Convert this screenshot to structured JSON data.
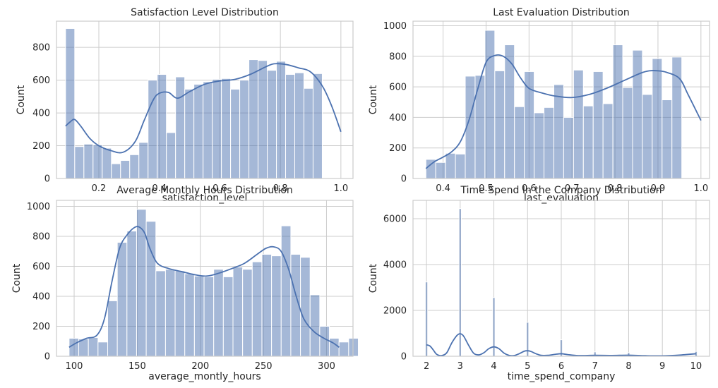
{
  "chart_data": [
    {
      "type": "bar",
      "title": "Satisfaction Level Distribution",
      "xlabel": "satisfaction_level",
      "ylabel": "Count",
      "xlim": [
        0.06,
        1.04
      ],
      "ylim": [
        0,
        960
      ],
      "xticks": [
        0.2,
        0.4,
        0.6,
        0.8,
        1.0
      ],
      "xticklabels": [
        "0.2",
        "0.4",
        "0.6",
        "0.8",
        "1.0"
      ],
      "yticks": [
        0,
        200,
        400,
        600,
        800
      ],
      "yticklabels": [
        "0",
        "200",
        "400",
        "600",
        "800"
      ],
      "bins": {
        "start": 0.09,
        "width": 0.0303
      },
      "values": [
        915,
        195,
        210,
        205,
        185,
        90,
        110,
        145,
        220,
        600,
        635,
        280,
        620,
        545,
        575,
        590,
        605,
        610,
        545,
        600,
        725,
        720,
        660,
        715,
        635,
        645,
        550,
        640
      ],
      "kde": {
        "x": [
          0.09,
          0.105,
          0.12,
          0.14,
          0.17,
          0.2,
          0.24,
          0.28,
          0.32,
          0.35,
          0.38,
          0.4,
          0.43,
          0.46,
          0.5,
          0.55,
          0.6,
          0.65,
          0.7,
          0.75,
          0.78,
          0.82,
          0.86,
          0.9,
          0.94,
          0.97,
          1.0
        ],
        "y": [
          320,
          345,
          360,
          320,
          245,
          200,
          170,
          160,
          225,
          355,
          480,
          520,
          525,
          490,
          530,
          575,
          595,
          605,
          635,
          680,
          700,
          695,
          675,
          650,
          560,
          440,
          285
        ]
      },
      "grid": true
    },
    {
      "type": "bar",
      "title": "Last Evaluation Distribution",
      "xlabel": "last_evaluation",
      "ylabel": "Count",
      "xlim": [
        0.33,
        1.02
      ],
      "ylim": [
        0,
        1030
      ],
      "xticks": [
        0.4,
        0.5,
        0.6,
        0.7,
        0.8,
        0.9,
        1.0
      ],
      "xticklabels": [
        "0.4",
        "0.5",
        "0.6",
        "0.7",
        "0.8",
        "0.9",
        "1.0"
      ],
      "yticks": [
        0,
        200,
        400,
        600,
        800,
        1000
      ],
      "yticklabels": [
        "0",
        "200",
        "400",
        "600",
        "800",
        "1000"
      ],
      "bins": {
        "start": 0.36,
        "width": 0.0229
      },
      "values": [
        125,
        105,
        165,
        160,
        670,
        675,
        970,
        705,
        875,
        470,
        700,
        430,
        465,
        615,
        400,
        710,
        475,
        700,
        490,
        875,
        595,
        840,
        550,
        785,
        515,
        795
      ],
      "kde": {
        "x": [
          0.36,
          0.38,
          0.4,
          0.42,
          0.44,
          0.46,
          0.48,
          0.5,
          0.52,
          0.54,
          0.56,
          0.58,
          0.6,
          0.63,
          0.66,
          0.7,
          0.74,
          0.78,
          0.82,
          0.86,
          0.88,
          0.9,
          0.92,
          0.95,
          0.97,
          1.0
        ],
        "y": [
          65,
          110,
          140,
          175,
          240,
          380,
          580,
          760,
          805,
          800,
          750,
          660,
          590,
          560,
          540,
          530,
          550,
          590,
          640,
          690,
          705,
          705,
          695,
          655,
          550,
          380
        ]
      },
      "grid": true
    },
    {
      "type": "bar",
      "title": "Average Monthly Hours Distribution",
      "xlabel": "average_montly_hours",
      "ylabel": "Count",
      "xlim": [
        86,
        321
      ],
      "ylim": [
        0,
        1040
      ],
      "xticks": [
        100,
        150,
        200,
        250,
        300
      ],
      "xticklabels": [
        "100",
        "150",
        "200",
        "250",
        "300"
      ],
      "yticks": [
        0,
        200,
        400,
        600,
        800,
        1000
      ],
      "yticklabels": [
        "0",
        "200",
        "400",
        "600",
        "800",
        "1000"
      ],
      "bins": {
        "start": 96,
        "width": 7.64
      },
      "values": [
        120,
        115,
        125,
        95,
        370,
        760,
        835,
        980,
        900,
        570,
        580,
        570,
        550,
        535,
        530,
        580,
        530,
        595,
        580,
        630,
        680,
        670,
        870,
        680,
        660,
        410,
        200,
        120,
        95,
        120
      ],
      "kde": {
        "x": [
          96,
          102,
          110,
          118,
          124,
          130,
          136,
          142,
          148,
          152,
          156,
          160,
          166,
          175,
          185,
          195,
          205,
          215,
          225,
          235,
          245,
          252,
          258,
          264,
          270,
          276,
          282,
          290,
          298,
          305,
          310
        ],
        "y": [
          60,
          90,
          120,
          140,
          250,
          500,
          720,
          810,
          860,
          860,
          820,
          720,
          620,
          585,
          565,
          545,
          535,
          555,
          585,
          620,
          680,
          720,
          730,
          700,
          580,
          400,
          250,
          165,
          120,
          90,
          60
        ]
      },
      "grid": true
    },
    {
      "type": "bar",
      "title": "Time Spend In the Company Distribution",
      "xlabel": "time_spend_company",
      "ylabel": "Count",
      "xlim": [
        1.6,
        10.4
      ],
      "ylim": [
        0,
        6800
      ],
      "xticks": [
        2,
        3,
        4,
        5,
        6,
        7,
        8,
        9,
        10
      ],
      "xticklabels": [
        "2",
        "3",
        "4",
        "5",
        "6",
        "7",
        "8",
        "9",
        "10"
      ],
      "yticks": [
        0,
        2000,
        4000,
        6000
      ],
      "yticklabels": [
        "0",
        "2000",
        "4000",
        "6000"
      ],
      "bar_positions": [
        2,
        3,
        4,
        5,
        6,
        7,
        8,
        10
      ],
      "bar_width": 0.07,
      "values": [
        3240,
        6440,
        2560,
        1480,
        720,
        190,
        160,
        210
      ],
      "kde": {
        "x": [
          2.0,
          2.1,
          2.2,
          2.3,
          2.45,
          2.6,
          2.75,
          2.9,
          3.0,
          3.1,
          3.25,
          3.4,
          3.55,
          3.7,
          3.85,
          4.0,
          4.15,
          4.3,
          4.45,
          4.6,
          4.75,
          4.9,
          5.0,
          5.1,
          5.25,
          5.4,
          5.6,
          5.8,
          6.0,
          6.2,
          6.5,
          7.0,
          7.5,
          8.0,
          8.5,
          9.0,
          9.5,
          10.0
        ],
        "y": [
          500,
          450,
          280,
          90,
          30,
          150,
          580,
          900,
          980,
          880,
          480,
          130,
          60,
          150,
          330,
          410,
          330,
          140,
          40,
          30,
          110,
          220,
          240,
          210,
          110,
          40,
          40,
          80,
          110,
          70,
          30,
          40,
          35,
          45,
          25,
          20,
          50,
          110
        ]
      },
      "grid": true
    }
  ]
}
